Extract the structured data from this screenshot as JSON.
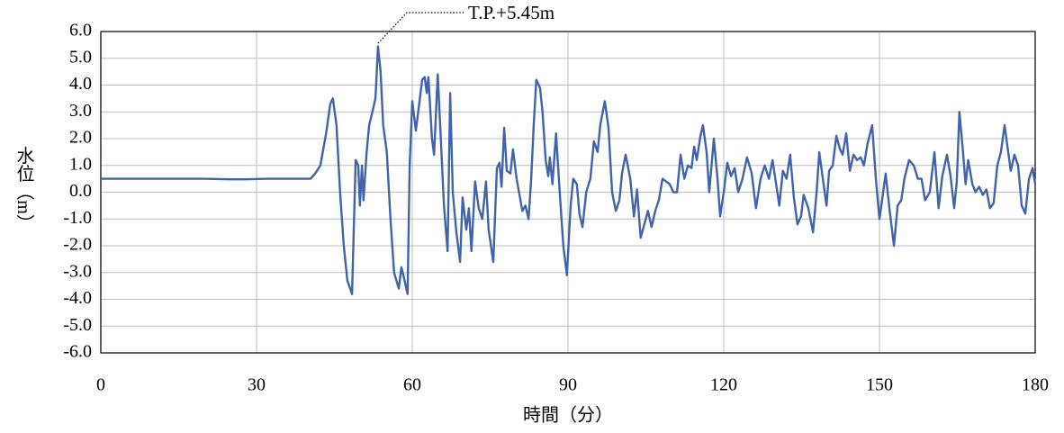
{
  "chart_data": {
    "type": "line",
    "x_label": "時間（分）",
    "y_label": "水位（m）",
    "annotation": "T.P.+5.45m",
    "color": "#3f63ac",
    "xlim": [
      0,
      180
    ],
    "xticks": [
      0,
      30,
      60,
      90,
      120,
      150,
      180
    ],
    "ylim": [
      -6,
      6
    ],
    "yticks": [
      {
        "value": 6,
        "label": "6.0"
      },
      {
        "value": 5,
        "label": "5.0"
      },
      {
        "value": 4,
        "label": "4.0"
      },
      {
        "value": 3,
        "label": "3.0"
      },
      {
        "value": 2,
        "label": "2.0"
      },
      {
        "value": 1,
        "label": "1.0"
      },
      {
        "value": 0,
        "label": "0.0"
      },
      {
        "value": -1,
        "label": "-1.0"
      },
      {
        "value": -2,
        "label": "-2.0"
      },
      {
        "value": -3,
        "label": "-3.0"
      },
      {
        "value": -4,
        "label": "-4.0"
      },
      {
        "value": -5,
        "label": "-5.0"
      },
      {
        "value": -6,
        "label": "-6.0"
      }
    ],
    "grid": true,
    "x": [
      0,
      10,
      20,
      25,
      28,
      32,
      36,
      40.4,
      41.3,
      42.3,
      43.4,
      44.2,
      44.7,
      45.4,
      46.1,
      46.8,
      47.5,
      48.4,
      49.1,
      49.6,
      49.9,
      50.3,
      50.6,
      51.2,
      51.7,
      52.2,
      52.9,
      53.4,
      53.9,
      54.4,
      55.1,
      55.8,
      56.5,
      57.4,
      57.9,
      58.4,
      59.1,
      59.5,
      60,
      60.7,
      61.9,
      62.4,
      62.8,
      63.1,
      63.8,
      64.2,
      64.9,
      65.5,
      66.1,
      66.8,
      67.3,
      67.8,
      68.5,
      69.2,
      69.7,
      70.4,
      70.9,
      71.4,
      72.1,
      72.8,
      73.5,
      74.2,
      74.7,
      75.6,
      76.3,
      76.8,
      77.2,
      77.7,
      78.2,
      78.9,
      79.4,
      80.1,
      81.2,
      81.8,
      82.4,
      82.9,
      83.4,
      83.9,
      84.6,
      85.1,
      85.7,
      86.2,
      86.5,
      87.0,
      87.7,
      88.4,
      89.1,
      89.8,
      90.5,
      91.0,
      91.7,
      92.2,
      92.8,
      93.5,
      94.3,
      95.0,
      95.7,
      96.2,
      97.1,
      97.8,
      98.5,
      99.2,
      99.9,
      100.4,
      101.1,
      102.0,
      102.7,
      103.3,
      104.0,
      104.7,
      105.4,
      106.1,
      106.8,
      107.5,
      108.2,
      108.9,
      109.6,
      110.3,
      111.0,
      111.7,
      112.4,
      113.1,
      113.8,
      114.3,
      114.8,
      115.5,
      116.0,
      116.7,
      117.2,
      118.1,
      118.8,
      119.3,
      120.0,
      120.7,
      121.4,
      122.1,
      122.8,
      123.6,
      124.5,
      125.4,
      126.2,
      127.1,
      127.9,
      128.7,
      129.4,
      130.1,
      130.7,
      131.4,
      132.1,
      132.8,
      133.5,
      134.2,
      134.9,
      135.4,
      136.3,
      137.2,
      137.9,
      138.4,
      139.1,
      139.8,
      140.3,
      141.0,
      141.7,
      142.4,
      142.9,
      143.6,
      144.3,
      145.0,
      145.7,
      146.4,
      147.0,
      147.7,
      148.6,
      149.3,
      150.0,
      150.5,
      151.2,
      151.9,
      152.8,
      153.5,
      154.2,
      154.8,
      155.7,
      156.6,
      157.4,
      158.1,
      158.8,
      159.7,
      160.6,
      161.4,
      162.1,
      163.0,
      163.7,
      164.4,
      164.9,
      165.4,
      166.1,
      166.6,
      167.1,
      167.9,
      168.5,
      169.2,
      169.9,
      170.6,
      171.3,
      172.0,
      172.7,
      173.4,
      174.1,
      174.8,
      175.3,
      176.0,
      176.7,
      177.4,
      178.1,
      178.8,
      179.5,
      180
    ],
    "values": [
      0.5,
      0.5,
      0.5,
      0.48,
      0.48,
      0.5,
      0.5,
      0.5,
      0.7,
      1.0,
      2.2,
      3.3,
      3.5,
      2.5,
      0.0,
      -2.0,
      -3.3,
      -3.8,
      1.2,
      1.0,
      -0.5,
      1.0,
      -0.3,
      1.5,
      2.5,
      2.9,
      3.5,
      5.45,
      4.5,
      2.5,
      1.5,
      -1.0,
      -3.0,
      -3.6,
      -2.8,
      -3.2,
      -3.8,
      1.0,
      3.4,
      2.3,
      4.2,
      4.3,
      3.7,
      4.3,
      2.0,
      1.4,
      4.4,
      2.0,
      -0.5,
      -2.2,
      3.7,
      0.0,
      -1.5,
      -2.6,
      -0.2,
      -1.4,
      -0.6,
      -2.2,
      0.4,
      -0.6,
      -1.0,
      0.4,
      -1.4,
      -2.6,
      0.9,
      1.1,
      0.2,
      2.4,
      0.8,
      0.7,
      1.6,
      0.5,
      -0.7,
      -0.5,
      -1.0,
      0.5,
      2.5,
      4.2,
      3.9,
      3.0,
      1.2,
      0.6,
      1.3,
      0.3,
      2.2,
      0.0,
      -2.0,
      -3.1,
      -0.5,
      0.5,
      0.3,
      -0.8,
      -1.3,
      0.0,
      0.5,
      1.9,
      1.5,
      2.5,
      3.4,
      2.4,
      0.0,
      -0.7,
      -0.3,
      0.7,
      1.4,
      0.5,
      -0.9,
      0.1,
      -1.7,
      -1.2,
      -0.7,
      -1.3,
      -0.7,
      -0.3,
      0.5,
      0.4,
      0.3,
      0.0,
      0.0,
      1.4,
      0.5,
      1.0,
      0.9,
      1.7,
      1.2,
      2.1,
      2.5,
      1.5,
      0.0,
      2.0,
      0.5,
      -0.9,
      0.0,
      1.1,
      0.6,
      0.9,
      0.0,
      0.5,
      1.3,
      0.7,
      -0.6,
      0.5,
      1.0,
      0.5,
      1.2,
      0.3,
      -0.5,
      0.8,
      0.5,
      1.4,
      -0.2,
      -1.2,
      -0.9,
      -0.1,
      -0.6,
      -1.5,
      0.0,
      1.5,
      0.5,
      -0.5,
      0.8,
      1.0,
      2.1,
      1.6,
      1.4,
      2.2,
      0.8,
      1.4,
      1.2,
      1.3,
      1.0,
      1.8,
      2.5,
      0.5,
      -1.0,
      -0.3,
      0.7,
      -0.6,
      -2.0,
      -0.5,
      -0.3,
      0.5,
      1.2,
      1.0,
      0.5,
      0.5,
      -0.3,
      0.0,
      1.5,
      -0.6,
      0.6,
      1.4,
      0.6,
      -0.6,
      0.4,
      3.0,
      1.5,
      0.3,
      1.2,
      0.3,
      0.0,
      0.2,
      -0.1,
      0.1,
      -0.6,
      -0.4,
      1.0,
      1.5,
      2.5,
      1.5,
      0.8,
      1.4,
      1.0,
      -0.5,
      -0.8,
      0.5,
      0.9,
      0.3
    ]
  }
}
